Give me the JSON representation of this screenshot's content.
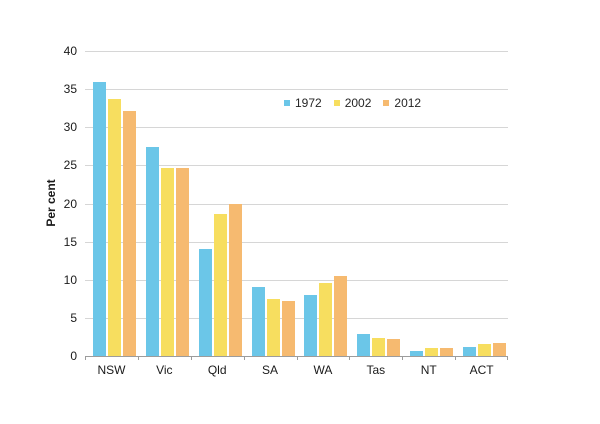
{
  "chart_data": {
    "type": "bar",
    "title": "",
    "xlabel": "",
    "ylabel": "Per cent",
    "categories": [
      "NSW",
      "Vic",
      "Qld",
      "SA",
      "WA",
      "Tas",
      "NT",
      "ACT"
    ],
    "series": [
      {
        "name": "1972",
        "color": "#6bc6e8",
        "values": [
          35.9,
          27.4,
          14.1,
          9.0,
          8.0,
          2.9,
          0.6,
          1.2
        ]
      },
      {
        "name": "2002",
        "color": "#f7de5f",
        "values": [
          33.7,
          24.6,
          18.6,
          7.5,
          9.6,
          2.3,
          1.0,
          1.6
        ]
      },
      {
        "name": "2012",
        "color": "#f6ba70",
        "values": [
          32.1,
          24.7,
          20.0,
          7.2,
          10.5,
          2.2,
          1.0,
          1.7
        ]
      }
    ],
    "ylim": [
      0,
      40
    ],
    "yticks": [
      0,
      5,
      10,
      15,
      20,
      25,
      30,
      35,
      40
    ],
    "grid": "horizontal",
    "legend_position": "top-center-inside"
  },
  "colors": {
    "gridline": "#d6d6d6",
    "axis": "#9c9c9c",
    "text": "#1a1a1a",
    "background": "#ffffff"
  }
}
